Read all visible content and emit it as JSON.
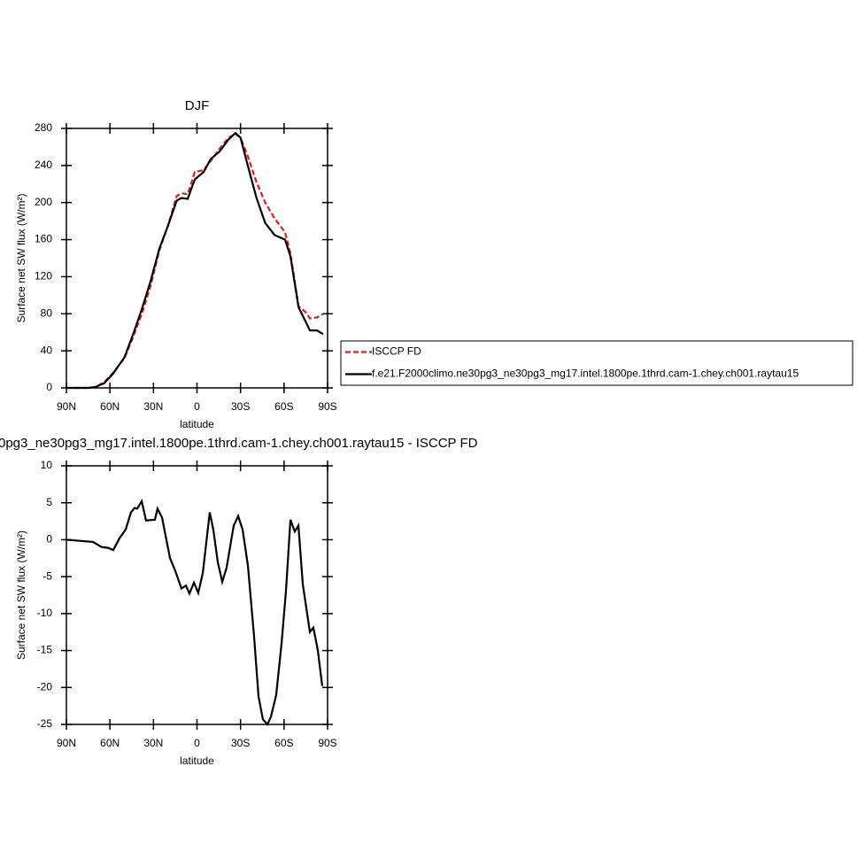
{
  "chart_data": [
    {
      "type": "line",
      "title": "DJF",
      "xlabel": "latitude",
      "ylabel": "Surface net SW flux (W/m²)",
      "xlim": [
        90,
        -90
      ],
      "xticks": [
        {
          "value": 90,
          "label": "90N"
        },
        {
          "value": 60,
          "label": "60N"
        },
        {
          "value": 30,
          "label": "30N"
        },
        0,
        {
          "value": -30,
          "label": "30S"
        },
        {
          "value": -60,
          "label": "60S"
        },
        {
          "value": -90,
          "label": "90S"
        }
      ],
      "ylim": [
        0,
        280
      ],
      "yticks": [
        0,
        40,
        80,
        120,
        160,
        200,
        240,
        280
      ],
      "legend": "right",
      "x": [
        90,
        74.7,
        70,
        64,
        58,
        50,
        44,
        38,
        32,
        26,
        20,
        14,
        10.7,
        6.4,
        1.5,
        -4.6,
        -9.5,
        -15.5,
        -21.7,
        -26.5,
        -30,
        -35,
        -41,
        -47,
        -53.4,
        -60.7,
        -64.4,
        -70,
        -74.7,
        -77.8,
        -82.7,
        -87
      ],
      "series": [
        {
          "name": "ISCCP FD",
          "color": "#e41a1c",
          "line_style": "dashed",
          "values": [
            0,
            0,
            1,
            6,
            16,
            32,
            55,
            80,
            110,
            148,
            175,
            207,
            210,
            209,
            233,
            235,
            245,
            258,
            270,
            274,
            270,
            250,
            222,
            200,
            183,
            168,
            145,
            88,
            82,
            75,
            76,
            80
          ]
        },
        {
          "name": "f.e21.F2000climo.ne30pg3_ne30pg3_mg17.intel.1800pe.1thrd.cam-1.chey.ch001.raytau15",
          "color": "#000000",
          "line_style": "solid",
          "values": [
            0,
            0,
            1,
            5,
            15,
            33,
            58,
            85,
            115,
            150,
            175,
            202,
            205,
            204,
            225,
            233,
            247,
            255,
            268,
            275,
            270,
            240,
            205,
            178,
            165,
            160,
            142,
            87,
            72,
            62,
            62,
            58
          ]
        }
      ]
    },
    {
      "type": "line",
      "title": "0pg3_ne30pg3_mg17.intel.1800pe.1thrd.cam-1.chey.ch001.raytau15 - ISCCP FD",
      "xlabel": "latitude",
      "ylabel": "Surface net SW flux (W/m²)",
      "xlim": [
        90,
        -90
      ],
      "xticks": [
        {
          "value": 90,
          "label": "90N"
        },
        {
          "value": 60,
          "label": "60N"
        },
        {
          "value": 30,
          "label": "30N"
        },
        0,
        {
          "value": -30,
          "label": "30S"
        },
        {
          "value": -60,
          "label": "60S"
        },
        {
          "value": -90,
          "label": "90S"
        }
      ],
      "ylim": [
        -25,
        10
      ],
      "yticks": [
        -25,
        -20,
        -15,
        -10,
        -5,
        0,
        5,
        10
      ],
      "x": [
        90,
        71.7,
        65.6,
        61.3,
        57.7,
        53.4,
        49.1,
        45.5,
        43,
        41.2,
        38.1,
        35.1,
        29,
        27.2,
        24.1,
        18.6,
        15,
        10.7,
        7.6,
        5.2,
        2.1,
        -0.9,
        -4,
        -8.8,
        -11.3,
        -14.3,
        -17.4,
        -20.4,
        -25.3,
        -28.4,
        -31.4,
        -35.1,
        -39.3,
        -42.4,
        -45.4,
        -48.5,
        -50.9,
        -54.6,
        -58.3,
        -61.3,
        -64.4,
        -67.4,
        -69.9,
        -72.9,
        -77.8,
        -80.2,
        -83.3,
        -86.3
      ],
      "series": [
        {
          "color": "#000000",
          "line_style": "solid",
          "values": [
            0,
            -0.3,
            -1,
            -1.1,
            -1.4,
            0.2,
            1.4,
            3.7,
            4.3,
            4.2,
            5.2,
            2.6,
            2.7,
            4.2,
            3,
            -2.5,
            -4.2,
            -6.6,
            -6.2,
            -7.3,
            -5.8,
            -7.2,
            -4.5,
            3.7,
            1.3,
            -3,
            -5.7,
            -3.8,
            1.9,
            3.2,
            1.4,
            -3.5,
            -13,
            -21.2,
            -24.3,
            -25,
            -24,
            -21,
            -14,
            -7,
            2.7,
            1.1,
            1.9,
            -6,
            -12.5,
            -11.9,
            -15,
            -19.8
          ]
        }
      ]
    }
  ]
}
